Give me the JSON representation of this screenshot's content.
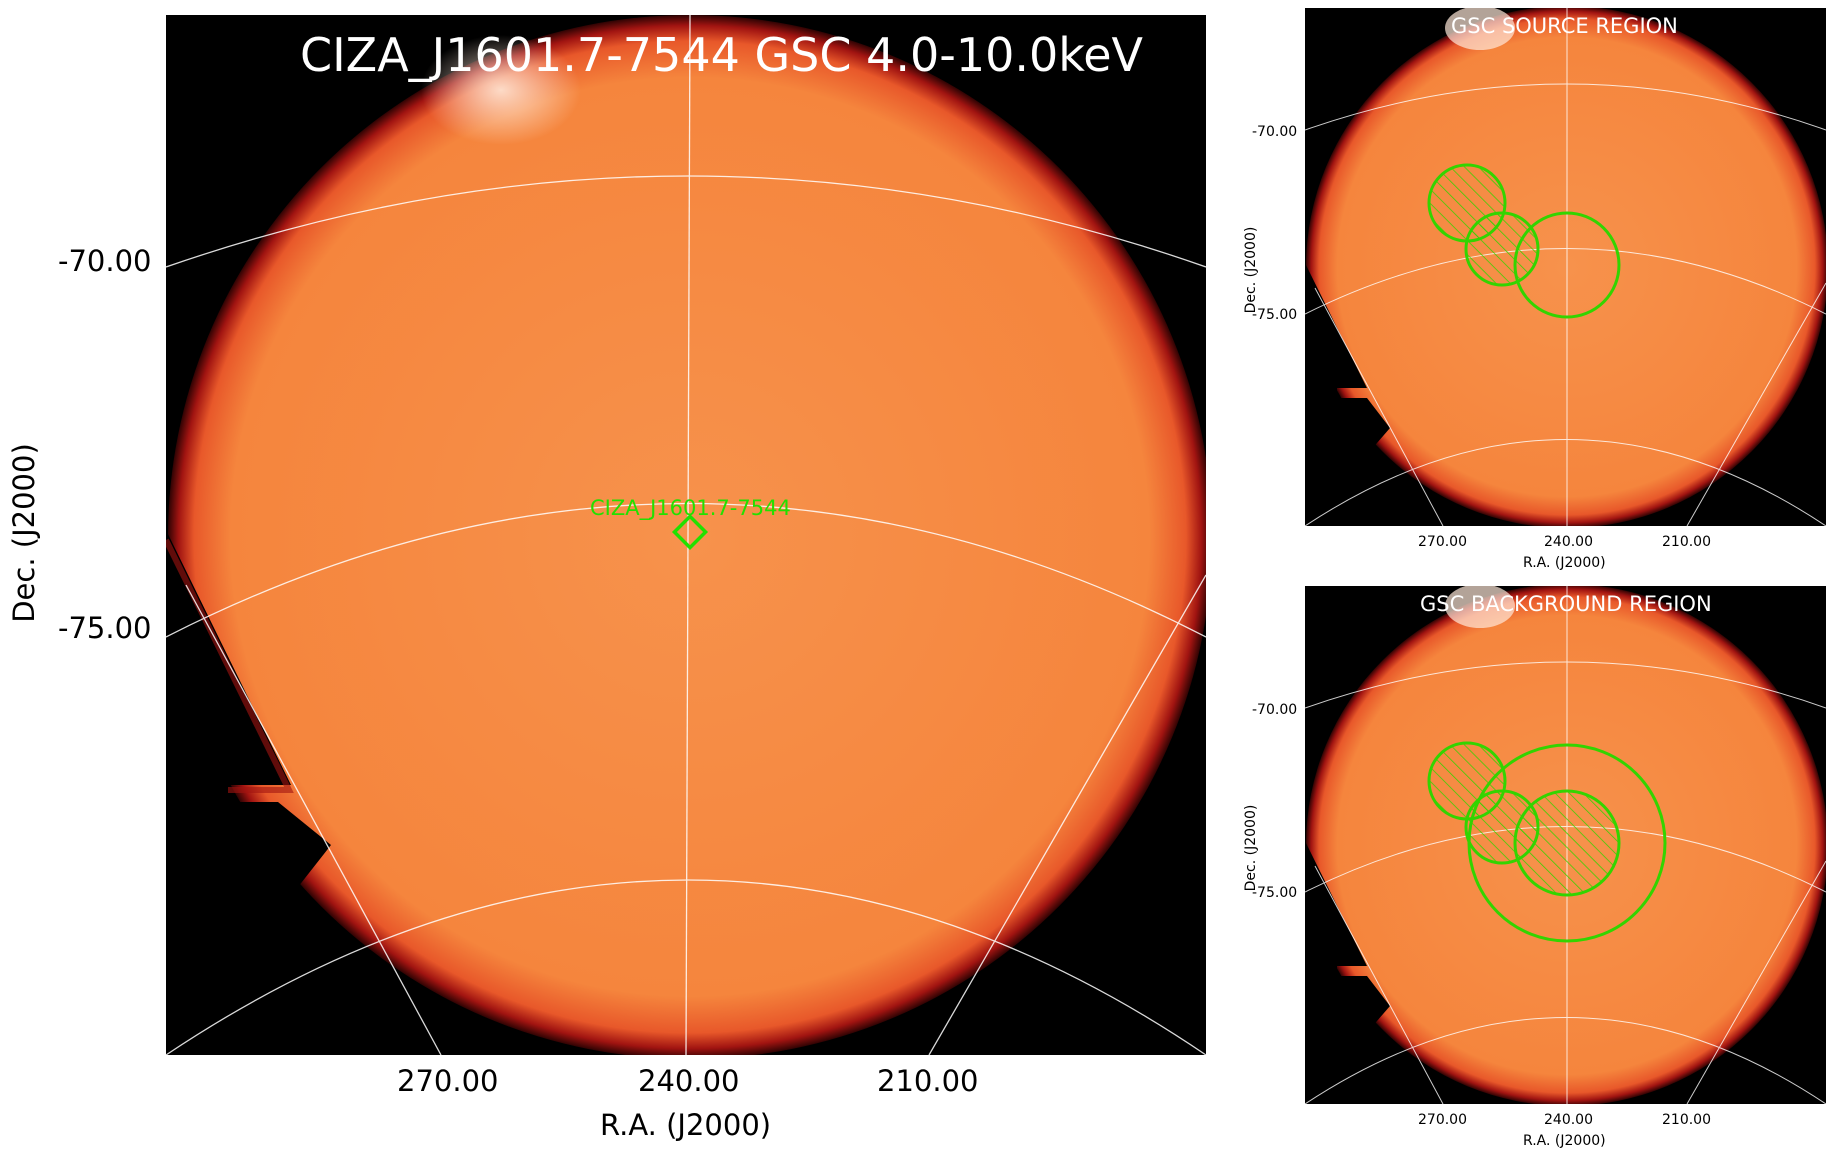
{
  "main_panel": {
    "title": "CIZA_J1601.7-7544 GSC 4.0-10.0keV",
    "ra_ticks": [
      "270.00",
      "240.00",
      "210.00"
    ],
    "dec_ticks": [
      "-70.00",
      "-75.00"
    ],
    "xlabel": "R.A. (J2000)",
    "ylabel": "Dec. (J2000)",
    "source_label": "CIZA_J1601.7-7544"
  },
  "source_panel": {
    "title": "GSC SOURCE REGION",
    "ra_ticks": [
      "270.00",
      "240.00",
      "210.00"
    ],
    "dec_ticks": [
      "-70.00",
      "-75.00"
    ],
    "xlabel": "R.A. (J2000)",
    "ylabel": "Dec. (J2000)"
  },
  "background_panel": {
    "title": "GSC BACKGROUND REGION",
    "ra_ticks": [
      "270.00",
      "240.00",
      "210.00"
    ],
    "dec_ticks": [
      "-70.00",
      "-75.00"
    ],
    "xlabel": "R.A. (J2000)",
    "ylabel": "Dec. (J2000)"
  },
  "colors": {
    "sky": "#f5873f",
    "sky_edge": "#b01010",
    "region": "#33d400",
    "grid": "#ffffff",
    "background": "#000000"
  }
}
